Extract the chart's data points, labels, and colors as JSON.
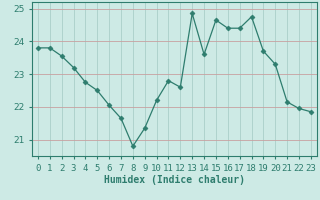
{
  "x": [
    0,
    1,
    2,
    3,
    4,
    5,
    6,
    7,
    8,
    9,
    10,
    11,
    12,
    13,
    14,
    15,
    16,
    17,
    18,
    19,
    20,
    21,
    22,
    23
  ],
  "y": [
    23.8,
    23.8,
    23.55,
    23.2,
    22.75,
    22.5,
    22.05,
    21.65,
    20.8,
    21.35,
    22.2,
    22.8,
    22.6,
    24.85,
    23.6,
    24.65,
    24.4,
    24.4,
    24.75,
    23.7,
    23.3,
    22.15,
    21.95,
    21.85
  ],
  "line_color": "#2e7d6e",
  "marker": "D",
  "marker_size": 2.5,
  "bg_color": "#cdeae5",
  "grid_color": "#aacfc9",
  "xlabel": "Humidex (Indice chaleur)",
  "ylim": [
    20.5,
    25.2
  ],
  "yticks": [
    21,
    22,
    23,
    24,
    25
  ],
  "xlim": [
    -0.5,
    23.5
  ],
  "xtick_labels": [
    "0",
    "1",
    "2",
    "3",
    "4",
    "5",
    "6",
    "7",
    "8",
    "9",
    "10",
    "11",
    "12",
    "13",
    "14",
    "15",
    "16",
    "17",
    "18",
    "19",
    "20",
    "21",
    "22",
    "23"
  ],
  "xlabel_fontsize": 7,
  "tick_fontsize": 6.5,
  "spine_color": "#2e7d6e"
}
